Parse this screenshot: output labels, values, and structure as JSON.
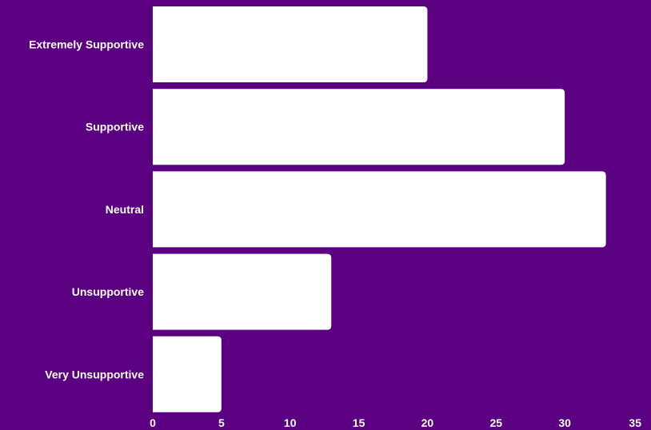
{
  "chart_data": {
    "type": "bar",
    "orientation": "horizontal",
    "categories": [
      "Extremely Supportive",
      "Supportive",
      "Neutral",
      "Unsupportive",
      "Very Unsupportive"
    ],
    "values": [
      20,
      30,
      33,
      13,
      5
    ],
    "xlim": [
      0,
      35
    ],
    "xticks": [
      0,
      5,
      10,
      15,
      20,
      25,
      30,
      35
    ],
    "title": "",
    "xlabel": "",
    "ylabel": "",
    "grid": false,
    "legend": "none",
    "colors": {
      "background": "#5b0080",
      "bar": "#ffffff",
      "text": "#ffffff"
    }
  }
}
